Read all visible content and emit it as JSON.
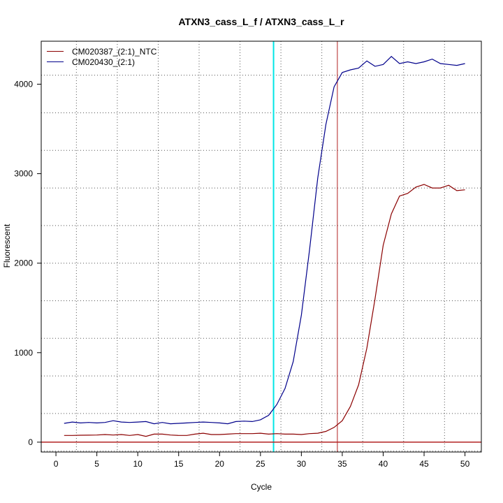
{
  "chart_data": {
    "type": "line",
    "title": "ATXN3_cass_L_f / ATXN3_cass_L_r",
    "xlabel": "Cycle",
    "ylabel": "Fluorescent",
    "xlim": [
      -1.8,
      52
    ],
    "ylim": [
      -110,
      4480
    ],
    "x_ticks": [
      0,
      5,
      10,
      15,
      20,
      25,
      30,
      35,
      40,
      45,
      50
    ],
    "y_ticks": [
      0,
      1000,
      2000,
      3000,
      4000
    ],
    "grid": true,
    "grid_x": [
      2.5,
      7.5,
      12.5,
      17.5,
      22.5,
      27.5,
      32.5,
      37.5,
      42.5,
      47.5
    ],
    "grid_y": [
      -100,
      320,
      740,
      1160,
      1580,
      2000,
      2420,
      2840,
      3260,
      3680,
      4100
    ],
    "legend_position": "top-left",
    "baseline": {
      "y": 0,
      "color": "#b22222"
    },
    "thresholds": [
      {
        "x": 26.6,
        "color": "#00e5e5"
      },
      {
        "x": 34.4,
        "color": "#b22222"
      }
    ],
    "x": [
      1,
      2,
      3,
      4,
      5,
      6,
      7,
      8,
      9,
      10,
      11,
      12,
      13,
      14,
      15,
      16,
      17,
      18,
      19,
      20,
      21,
      22,
      23,
      24,
      25,
      26,
      27,
      28,
      29,
      30,
      31,
      32,
      33,
      34,
      35,
      36,
      37,
      38,
      39,
      40,
      41,
      42,
      43,
      44,
      45,
      46,
      47,
      48,
      49,
      50
    ],
    "series": [
      {
        "name": "CM020387_(2:1)_NTC",
        "color": "#8b0000",
        "values": [
          75,
          75,
          77,
          78,
          80,
          85,
          80,
          85,
          75,
          85,
          65,
          90,
          90,
          80,
          75,
          75,
          90,
          100,
          85,
          85,
          90,
          95,
          95,
          95,
          100,
          90,
          95,
          90,
          90,
          85,
          95,
          100,
          120,
          165,
          240,
          400,
          640,
          1050,
          1600,
          2200,
          2550,
          2750,
          2780,
          2850,
          2880,
          2840,
          2840,
          2870,
          2810,
          2820
        ]
      },
      {
        "name": "CM020430_(2:1)",
        "color": "#00008b",
        "values": [
          210,
          225,
          215,
          220,
          215,
          220,
          240,
          225,
          220,
          225,
          230,
          205,
          220,
          205,
          210,
          215,
          220,
          225,
          220,
          215,
          205,
          230,
          235,
          230,
          250,
          300,
          420,
          600,
          900,
          1420,
          2150,
          2950,
          3550,
          3970,
          4130,
          4160,
          4180,
          4260,
          4200,
          4220,
          4310,
          4230,
          4250,
          4230,
          4250,
          4280,
          4230,
          4220,
          4210,
          4230
        ]
      }
    ]
  }
}
